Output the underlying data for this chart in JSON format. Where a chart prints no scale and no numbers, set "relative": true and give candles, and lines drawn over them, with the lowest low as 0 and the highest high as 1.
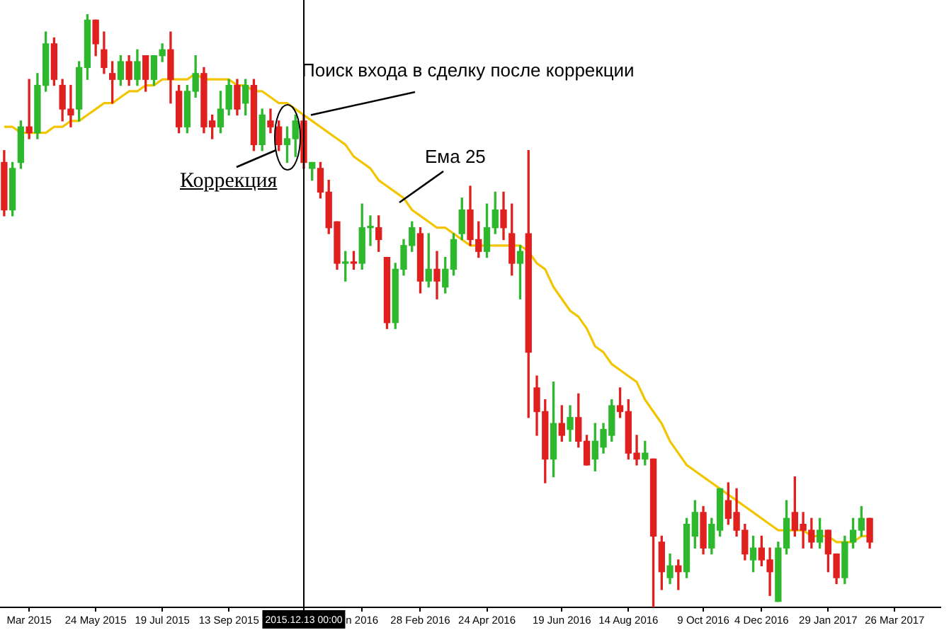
{
  "chart_data": {
    "type": "candlestick",
    "relative": true,
    "categories": [
      null,
      null,
      null,
      "Mar 2015",
      null,
      null,
      null,
      null,
      null,
      null,
      null,
      "24 May 2015",
      null,
      null,
      null,
      null,
      null,
      null,
      null,
      "19 Jul 2015",
      null,
      null,
      null,
      null,
      null,
      null,
      null,
      "13 Sep 2015",
      null,
      null,
      null,
      null,
      null,
      null,
      null,
      null,
      "2015.12.13 00:00",
      null,
      null,
      null,
      null,
      null,
      null,
      "n 2016",
      null,
      null,
      null,
      null,
      null,
      null,
      "28 Feb 2016",
      null,
      null,
      null,
      null,
      null,
      null,
      null,
      "24 Apr 2016",
      null,
      null,
      null,
      null,
      null,
      null,
      null,
      null,
      "19 Jun 2016",
      null,
      null,
      null,
      null,
      null,
      null,
      null,
      "14 Aug 2016",
      null,
      null,
      null,
      null,
      null,
      null,
      null,
      null,
      "9 Oct 2016",
      null,
      null,
      null,
      null,
      null,
      null,
      "4 Dec 2016",
      null,
      null,
      null,
      null,
      null,
      null,
      null,
      "29 Jan 2017",
      null,
      null,
      null,
      null,
      null,
      null,
      null,
      "26 Mar 2017",
      null,
      null,
      null,
      null,
      null
    ],
    "ohlc": [
      [
        0.75,
        0.77,
        0.66,
        0.67
      ],
      [
        0.67,
        0.75,
        0.66,
        0.74
      ],
      [
        0.75,
        0.82,
        0.74,
        0.81
      ],
      [
        0.81,
        0.89,
        0.79,
        0.8
      ],
      [
        0.8,
        0.9,
        0.79,
        0.88
      ],
      [
        0.88,
        0.97,
        0.87,
        0.95
      ],
      [
        0.95,
        0.96,
        0.88,
        0.89
      ],
      [
        0.88,
        0.89,
        0.82,
        0.84
      ],
      [
        0.84,
        0.88,
        0.81,
        0.83
      ],
      [
        0.84,
        0.92,
        0.82,
        0.91
      ],
      [
        0.91,
        1,
        0.89,
        0.99
      ],
      [
        0.99,
        0.99,
        0.93,
        0.95
      ],
      [
        0.94,
        0.97,
        0.9,
        0.91
      ],
      [
        0.9,
        0.92,
        0.85,
        0.89
      ],
      [
        0.89,
        0.93,
        0.88,
        0.92
      ],
      [
        0.92,
        0.93,
        0.88,
        0.89
      ],
      [
        0.89,
        0.94,
        0.88,
        0.92
      ],
      [
        0.93,
        0.93,
        0.87,
        0.89
      ],
      [
        0.89,
        0.93,
        0.88,
        0.93
      ],
      [
        0.93,
        0.95,
        0.92,
        0.94
      ],
      [
        0.94,
        0.97,
        0.85,
        0.89
      ],
      [
        0.87,
        0.88,
        0.8,
        0.81
      ],
      [
        0.81,
        0.88,
        0.8,
        0.87
      ],
      [
        0.87,
        0.93,
        0.86,
        0.9
      ],
      [
        0.9,
        0.91,
        0.8,
        0.81
      ],
      [
        0.82,
        0.83,
        0.79,
        0.81
      ],
      [
        0.81,
        0.87,
        0.8,
        0.84
      ],
      [
        0.84,
        0.89,
        0.83,
        0.88
      ],
      [
        0.88,
        0.89,
        0.83,
        0.84
      ],
      [
        0.85,
        0.89,
        0.83,
        0.88
      ],
      [
        0.88,
        0.89,
        0.77,
        0.78
      ],
      [
        0.78,
        0.84,
        0.77,
        0.83
      ],
      [
        0.82,
        0.84,
        0.8,
        0.81
      ],
      [
        0.81,
        0.82,
        0.77,
        0.78
      ],
      [
        0.78,
        0.81,
        0.75,
        0.79
      ],
      [
        0.79,
        0.83,
        0.76,
        0.82
      ],
      [
        0.82,
        0.83,
        0.74,
        0.75
      ],
      [
        0.74,
        0.75,
        0.72,
        0.75
      ],
      [
        0.74,
        0.75,
        0.69,
        0.7
      ],
      [
        0.7,
        0.72,
        0.63,
        0.64
      ],
      [
        0.65,
        0.65,
        0.57,
        0.58
      ],
      [
        0.58,
        0.6,
        0.55,
        0.58
      ],
      [
        0.58,
        0.6,
        0.57,
        0.58
      ],
      [
        0.58,
        0.68,
        0.57,
        0.64
      ],
      [
        0.64,
        0.66,
        0.61,
        0.64
      ],
      [
        0.64,
        0.66,
        0.6,
        0.62
      ],
      [
        0.59,
        0.59,
        0.47,
        0.48
      ],
      [
        0.48,
        0.58,
        0.47,
        0.57
      ],
      [
        0.57,
        0.62,
        0.56,
        0.61
      ],
      [
        0.61,
        0.65,
        0.6,
        0.64
      ],
      [
        0.63,
        0.64,
        0.53,
        0.55
      ],
      [
        0.55,
        0.63,
        0.54,
        0.57
      ],
      [
        0.57,
        0.6,
        0.52,
        0.55
      ],
      [
        0.54,
        0.59,
        0.53,
        0.57
      ],
      [
        0.57,
        0.63,
        0.56,
        0.62
      ],
      [
        0.63,
        0.69,
        0.62,
        0.67
      ],
      [
        0.67,
        0.71,
        0.61,
        0.62
      ],
      [
        0.62,
        0.65,
        0.59,
        0.6
      ],
      [
        0.6,
        0.68,
        0.59,
        0.64
      ],
      [
        0.64,
        0.7,
        0.63,
        0.67
      ],
      [
        0.67,
        0.7,
        0.62,
        0.64
      ],
      [
        0.63,
        0.68,
        0.56,
        0.58
      ],
      [
        0.58,
        0.61,
        0.52,
        0.6
      ],
      [
        0.63,
        0.77,
        0.32,
        0.43
      ],
      [
        0.37,
        0.39,
        0.29,
        0.33
      ],
      [
        0.33,
        0.35,
        0.21,
        0.25
      ],
      [
        0.25,
        0.38,
        0.22,
        0.31
      ],
      [
        0.31,
        0.34,
        0.28,
        0.29
      ],
      [
        0.3,
        0.34,
        0.28,
        0.32
      ],
      [
        0.32,
        0.36,
        0.27,
        0.28
      ],
      [
        0.28,
        0.29,
        0.24,
        0.24
      ],
      [
        0.25,
        0.31,
        0.23,
        0.28
      ],
      [
        0.27,
        0.31,
        0.26,
        0.3
      ],
      [
        0.29,
        0.35,
        0.28,
        0.34
      ],
      [
        0.34,
        0.37,
        0.32,
        0.33
      ],
      [
        0.33,
        0.35,
        0.25,
        0.26
      ],
      [
        0.26,
        0.29,
        0.24,
        0.25
      ],
      [
        0.25,
        0.28,
        0.24,
        0.26
      ],
      [
        0.25,
        0.25,
        0,
        0.12
      ],
      [
        0.11,
        0.12,
        0.03,
        0.06
      ],
      [
        0.05,
        0.09,
        0.04,
        0.07
      ],
      [
        0.07,
        0.08,
        0.03,
        0.06
      ],
      [
        0.06,
        0.15,
        0.05,
        0.14
      ],
      [
        0.12,
        0.18,
        0.1,
        0.16
      ],
      [
        0.16,
        0.17,
        0.09,
        0.1
      ],
      [
        0.1,
        0.15,
        0.09,
        0.14
      ],
      [
        0.13,
        0.2,
        0.12,
        0.2
      ],
      [
        0.18,
        0.21,
        0.14,
        0.15
      ],
      [
        0.16,
        0.2,
        0.12,
        0.13
      ],
      [
        0.13,
        0.14,
        0.08,
        0.09
      ],
      [
        0.08,
        0.12,
        0.06,
        0.1
      ],
      [
        0.1,
        0.12,
        0.07,
        0.08
      ],
      [
        0.08,
        0.1,
        0.02,
        0.06
      ],
      [
        0.01,
        0.11,
        0.01,
        0.1
      ],
      [
        0.1,
        0.18,
        0.09,
        0.15
      ],
      [
        0.16,
        0.22,
        0.12,
        0.13
      ],
      [
        0.14,
        0.16,
        0.1,
        0.13
      ],
      [
        0.13,
        0.15,
        0.1,
        0.11
      ],
      [
        0.11,
        0.15,
        0.1,
        0.13
      ],
      [
        0.13,
        0.13,
        0.06,
        0.09
      ],
      [
        0.09,
        0.09,
        0.04,
        0.05
      ],
      [
        0.05,
        0.12,
        0.04,
        0.11
      ],
      [
        0.11,
        0.15,
        0.1,
        0.13
      ],
      [
        0.13,
        0.17,
        0.12,
        0.15
      ],
      [
        0.15,
        0.15,
        0.1,
        0.11
      ],
      null,
      null,
      null,
      null,
      null,
      null,
      null,
      null
    ],
    "colors": [
      "#e0201f",
      "#2eb82e",
      "#2eb82e",
      "#e0201f",
      "#2eb82e",
      "#2eb82e",
      "#e0201f",
      "#e0201f",
      "#e0201f",
      "#2eb82e",
      "#2eb82e",
      "#e0201f",
      "#e0201f",
      "#e0201f",
      "#2eb82e",
      "#e0201f",
      "#2eb82e",
      "#e0201f",
      "#2eb82e",
      "#2eb82e",
      "#e0201f",
      "#e0201f",
      "#2eb82e",
      "#2eb82e",
      "#e0201f",
      "#e0201f",
      "#2eb82e",
      "#2eb82e",
      "#e0201f",
      "#2eb82e",
      "#e0201f",
      "#2eb82e",
      "#e0201f",
      "#e0201f",
      "#2eb82e",
      "#2eb82e",
      "#e0201f",
      "#2eb82e",
      "#e0201f",
      "#e0201f",
      "#e0201f",
      "#2eb82e",
      "#e0201f",
      "#2eb82e",
      "#2eb82e",
      "#e0201f",
      "#e0201f",
      "#2eb82e",
      "#2eb82e",
      "#2eb82e",
      "#e0201f",
      "#2eb82e",
      "#e0201f",
      "#2eb82e",
      "#2eb82e",
      "#2eb82e",
      "#e0201f",
      "#e0201f",
      "#2eb82e",
      "#2eb82e",
      "#e0201f",
      "#e0201f",
      "#2eb82e",
      "#e0201f",
      "#e0201f",
      "#e0201f",
      "#2eb82e",
      "#e0201f",
      "#2eb82e",
      "#e0201f",
      "#e0201f",
      "#2eb82e",
      "#2eb82e",
      "#2eb82e",
      "#e0201f",
      "#e0201f",
      "#e0201f",
      "#2eb82e",
      "#e0201f",
      "#e0201f",
      "#2eb82e",
      "#e0201f",
      "#2eb82e",
      "#2eb82e",
      "#e0201f",
      "#2eb82e",
      "#2eb82e",
      "#e0201f",
      "#e0201f",
      "#e0201f",
      "#2eb82e",
      "#e0201f",
      "#e0201f",
      "#2eb82e",
      "#2eb82e",
      "#e0201f",
      "#e0201f",
      "#e0201f",
      "#2eb82e",
      "#e0201f",
      "#e0201f",
      "#2eb82e",
      "#2eb82e",
      "#2eb82e",
      "#e0201f",
      null,
      null,
      null,
      null,
      null,
      null,
      null,
      null
    ],
    "series": [
      {
        "name": "Ема 25",
        "type": "line",
        "color": "#f2c500",
        "values": [
          0.81,
          0.81,
          0.8,
          0.8,
          0.8,
          0.8,
          0.81,
          0.81,
          0.82,
          0.82,
          0.83,
          0.84,
          0.85,
          0.85,
          0.86,
          0.87,
          0.87,
          0.88,
          0.88,
          0.89,
          0.89,
          0.89,
          0.89,
          0.9,
          0.89,
          0.89,
          0.89,
          0.89,
          0.88,
          0.88,
          0.87,
          0.87,
          0.86,
          0.85,
          0.85,
          0.84,
          0.83,
          0.82,
          0.81,
          0.8,
          0.79,
          0.78,
          0.76,
          0.75,
          0.74,
          0.72,
          0.71,
          0.7,
          0.69,
          0.67,
          0.66,
          0.65,
          0.64,
          0.64,
          0.63,
          0.62,
          0.61,
          0.61,
          0.61,
          0.61,
          0.61,
          0.61,
          0.61,
          0.6,
          0.58,
          0.57,
          0.54,
          0.52,
          0.5,
          0.49,
          0.47,
          0.44,
          0.43,
          0.41,
          0.4,
          0.39,
          0.38,
          0.35,
          0.33,
          0.31,
          0.28,
          0.26,
          0.24,
          0.23,
          0.22,
          0.21,
          0.2,
          0.19,
          0.18,
          0.17,
          0.16,
          0.15,
          0.14,
          0.13,
          0.13,
          0.13,
          0.13,
          0.12,
          0.12,
          0.12,
          0.11,
          0.11,
          0.11,
          0.12,
          0.12,
          null,
          null,
          null,
          null,
          null,
          null,
          null,
          null
        ]
      }
    ],
    "ref_lines": [
      {
        "axis": "x",
        "value": "2015.12.13 00:00",
        "color": "#000000"
      }
    ],
    "annotations": [
      {
        "text": "Поиск входа в сделку после коррекции",
        "x": "2015.12.13 00:00",
        "y": 0.83
      },
      "Коррекция"
    ]
  }
}
